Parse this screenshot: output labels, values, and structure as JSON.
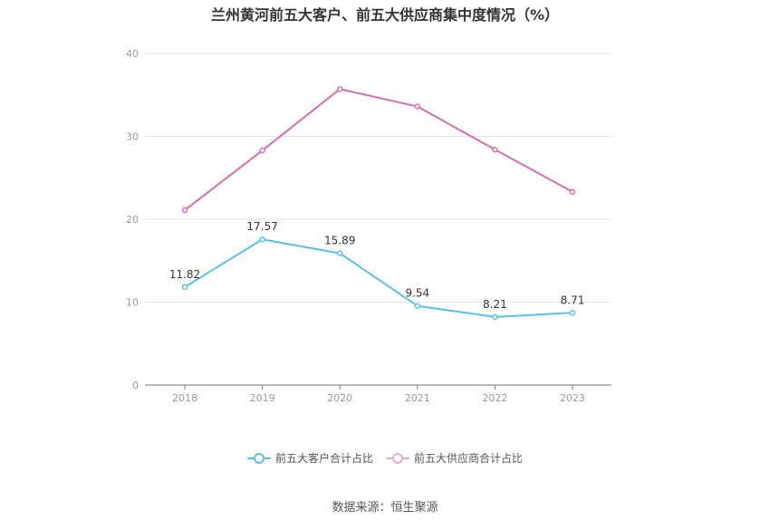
{
  "chart_data": {
    "type": "line",
    "title": "兰州黄河前五大客户、前五大供应商集中度情况（%）",
    "categories": [
      "2018",
      "2019",
      "2020",
      "2021",
      "2022",
      "2023"
    ],
    "ylim": [
      0,
      40
    ],
    "yticks": [
      0,
      10,
      20,
      30,
      40
    ],
    "grid": true,
    "legend_position": "bottom",
    "series": [
      {
        "name": "前五大客户合计占比",
        "color": "#5BBFEA",
        "values": [
          11.82,
          17.57,
          15.89,
          9.54,
          8.21,
          8.71
        ],
        "labels": [
          "11.82",
          "17.57",
          "15.89",
          "9.54",
          "8.21",
          "8.71"
        ]
      },
      {
        "name": "前五大供应商合计占比",
        "color": "#D36FB0",
        "values": [
          21.1,
          28.3,
          35.7,
          33.6,
          28.4,
          23.3
        ]
      }
    ]
  },
  "source": "数据来源：恒生聚源"
}
